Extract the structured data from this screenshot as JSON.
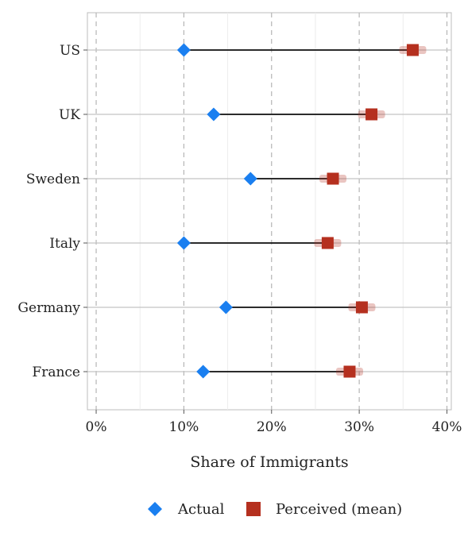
{
  "chart_data": {
    "type": "dumbbell",
    "title": "",
    "xlabel": "Share of Immigrants",
    "ylabel": "",
    "xlim": [
      -1,
      40.5
    ],
    "x_ticks": [
      0,
      10,
      20,
      30,
      40
    ],
    "x_tick_labels": [
      "0%",
      "10%",
      "20%",
      "30%",
      "40%"
    ],
    "categories": [
      "US",
      "UK",
      "Sweden",
      "Italy",
      "Germany",
      "France"
    ],
    "series": [
      {
        "name": "Actual",
        "marker": "diamond",
        "color": "#1a7ff0",
        "values": [
          10.0,
          13.4,
          17.6,
          10.0,
          14.8,
          12.2
        ]
      },
      {
        "name": "Perceived (mean)",
        "marker": "square",
        "color": "#b5301f",
        "values": [
          36.1,
          31.4,
          27.0,
          26.4,
          30.3,
          28.9
        ]
      }
    ],
    "grid": true,
    "legend_position": "bottom"
  }
}
